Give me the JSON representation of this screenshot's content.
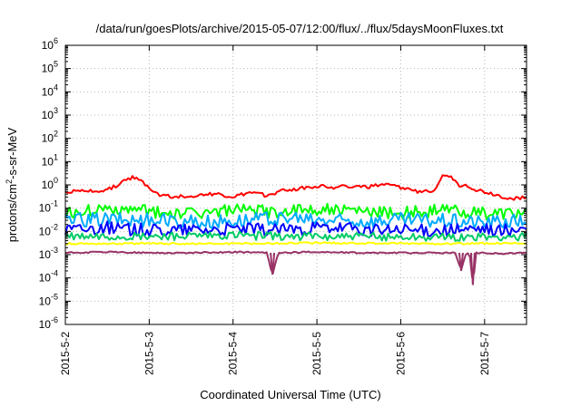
{
  "chart_data": {
    "type": "line",
    "title": "/data/run/goesPlots/archive/2015-05-07/12:00/flux/../flux/5daysMoonFluxes.txt",
    "xlabel": "Coordinated Universal Time (UTC)",
    "ylabel_parts": [
      "protons/cm",
      "2",
      "-s-sr-MeV"
    ],
    "x_ticks": [
      "2015-5-2",
      "2015-5-3",
      "2015-5-4",
      "2015-5-5",
      "2015-5-6",
      "2015-5-7"
    ],
    "y_scale": "log",
    "y_tick_exponents": [
      "-6",
      "-5",
      "-4",
      "-3",
      "-2",
      "-1",
      "0",
      "1",
      "2",
      "3",
      "4",
      "5",
      "6"
    ],
    "y_tick_base": "10",
    "ylim": [
      1e-06,
      1000000.0
    ],
    "xlim_days": [
      0,
      5.5
    ],
    "grid": true,
    "legend": "none",
    "series": [
      {
        "color": "#ff0000",
        "points": [
          [
            0,
            0.5
          ],
          [
            0.3,
            0.55
          ],
          [
            0.5,
            0.6
          ],
          [
            0.7,
            1.4
          ],
          [
            0.8,
            2.2
          ],
          [
            0.9,
            1.5
          ],
          [
            1.0,
            0.8
          ],
          [
            1.1,
            0.4
          ],
          [
            1.3,
            0.3
          ],
          [
            1.5,
            0.35
          ],
          [
            1.8,
            0.4
          ],
          [
            2.0,
            0.3
          ],
          [
            2.2,
            0.45
          ],
          [
            2.4,
            0.35
          ],
          [
            2.6,
            0.6
          ],
          [
            2.8,
            0.7
          ],
          [
            3.0,
            0.9
          ],
          [
            3.2,
            0.8
          ],
          [
            3.4,
            0.9
          ],
          [
            3.6,
            0.8
          ],
          [
            3.8,
            1.0
          ],
          [
            4.0,
            0.8
          ],
          [
            4.2,
            0.5
          ],
          [
            4.4,
            0.6
          ],
          [
            4.5,
            3.0
          ],
          [
            4.6,
            2.0
          ],
          [
            4.7,
            1.0
          ],
          [
            4.8,
            0.9
          ],
          [
            4.9,
            0.6
          ],
          [
            5.1,
            0.4
          ],
          [
            5.3,
            0.25
          ],
          [
            5.5,
            0.3
          ]
        ]
      },
      {
        "color": "#00ff00",
        "points": [
          [
            0,
            0.06
          ],
          [
            0.5,
            0.09
          ],
          [
            1.0,
            0.07
          ],
          [
            1.5,
            0.06
          ],
          [
            2.0,
            0.08
          ],
          [
            2.5,
            0.07
          ],
          [
            3.0,
            0.09
          ],
          [
            3.5,
            0.07
          ],
          [
            4.0,
            0.06
          ],
          [
            4.5,
            0.08
          ],
          [
            5.0,
            0.06
          ],
          [
            5.5,
            0.07
          ]
        ]
      },
      {
        "color": "#00aaff",
        "points": [
          [
            0,
            0.03
          ],
          [
            0.5,
            0.035
          ],
          [
            1.0,
            0.03
          ],
          [
            1.5,
            0.025
          ],
          [
            2.0,
            0.03
          ],
          [
            2.5,
            0.035
          ],
          [
            3.0,
            0.03
          ],
          [
            3.5,
            0.028
          ],
          [
            4.0,
            0.032
          ],
          [
            4.5,
            0.03
          ],
          [
            5.0,
            0.025
          ],
          [
            5.5,
            0.03
          ]
        ]
      },
      {
        "color": "#0000ff",
        "points": [
          [
            0,
            0.012
          ],
          [
            0.5,
            0.014
          ],
          [
            1.0,
            0.011
          ],
          [
            1.5,
            0.012
          ],
          [
            2.0,
            0.013
          ],
          [
            2.5,
            0.012
          ],
          [
            3.0,
            0.013
          ],
          [
            3.5,
            0.012
          ],
          [
            4.0,
            0.011
          ],
          [
            4.5,
            0.012
          ],
          [
            5.0,
            0.011
          ],
          [
            5.5,
            0.012
          ]
        ]
      },
      {
        "color": "#00cc66",
        "points": [
          [
            0,
            0.006
          ],
          [
            1.0,
            0.006
          ],
          [
            2.0,
            0.0065
          ],
          [
            3.0,
            0.006
          ],
          [
            4.0,
            0.006
          ],
          [
            5.0,
            0.0055
          ],
          [
            5.5,
            0.006
          ]
        ]
      },
      {
        "color": "#ffff00",
        "points": [
          [
            0,
            0.003
          ],
          [
            1.0,
            0.003
          ],
          [
            2.0,
            0.003
          ],
          [
            3.0,
            0.0032
          ],
          [
            4.0,
            0.003
          ],
          [
            5.0,
            0.003
          ],
          [
            5.5,
            0.003
          ]
        ]
      },
      {
        "color": "#993366",
        "points": [
          [
            0,
            0.0012
          ],
          [
            0.5,
            0.0013
          ],
          [
            1.0,
            0.0012
          ],
          [
            1.5,
            0.0012
          ],
          [
            2.0,
            0.0013
          ],
          [
            2.4,
            0.0012
          ],
          [
            2.47,
            0.00014
          ],
          [
            2.54,
            0.0012
          ],
          [
            3.0,
            0.0013
          ],
          [
            3.5,
            0.0012
          ],
          [
            4.0,
            0.0012
          ],
          [
            4.5,
            0.0012
          ],
          [
            4.65,
            0.0012
          ],
          [
            4.72,
            0.0002
          ],
          [
            4.78,
            0.0012
          ],
          [
            4.82,
            0.0012
          ],
          [
            4.86,
            5e-05
          ],
          [
            4.9,
            0.0012
          ],
          [
            5.2,
            0.0011
          ],
          [
            5.5,
            0.0012
          ]
        ]
      }
    ]
  }
}
